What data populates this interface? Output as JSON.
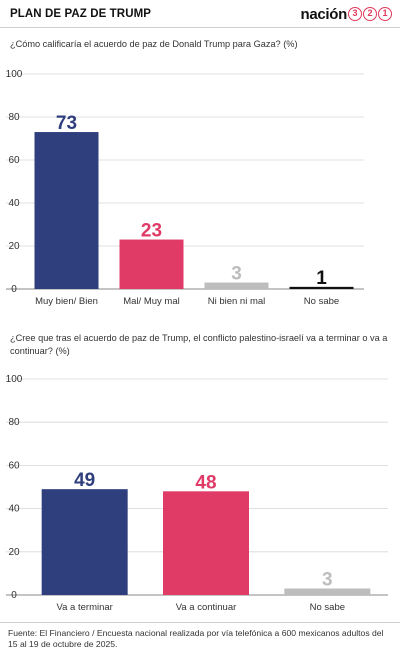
{
  "header": {
    "title": "PLAN DE PAZ DE TRUMP",
    "logo_word": "nación",
    "logo_digits": [
      "3",
      "2",
      "1"
    ]
  },
  "colors": {
    "navy": "#2f3f7d",
    "pink": "#e03a66",
    "gray": "#bdbdbd",
    "black": "#111111"
  },
  "chart_data": [
    {
      "type": "bar",
      "title": "¿Cómo calificaría el acuerdo de paz de Donald Trump para Gaza?   (%)",
      "categories": [
        "Muy bien/ Bien",
        "Mal/ Muy mal",
        "Ni bien ni mal",
        "No sabe"
      ],
      "values": [
        73,
        23,
        3,
        1
      ],
      "bar_colors": [
        "#2f3f7d",
        "#e03a66",
        "#bdbdbd",
        "#111111"
      ],
      "yticks": [
        0,
        20,
        40,
        60,
        80,
        100
      ],
      "ylim": [
        0,
        100
      ],
      "grid": true
    },
    {
      "type": "bar",
      "title": "¿Cree que tras el acuerdo de paz de Trump, el conflicto palestino-israelí va a terminar o va a continuar? (%)",
      "categories": [
        "Va a terminar",
        "Va a continuar",
        "No sabe"
      ],
      "values": [
        49,
        48,
        3
      ],
      "bar_colors": [
        "#2f3f7d",
        "#e03a66",
        "#bdbdbd"
      ],
      "yticks": [
        0,
        20,
        40,
        60,
        80,
        100
      ],
      "ylim": [
        0,
        100
      ],
      "grid": true
    }
  ],
  "source": "Fuente: El Financiero / Encuesta nacional realizada por vía telefónica a 600 mexicanos adultos del 15 al 19 de octubre de 2025."
}
